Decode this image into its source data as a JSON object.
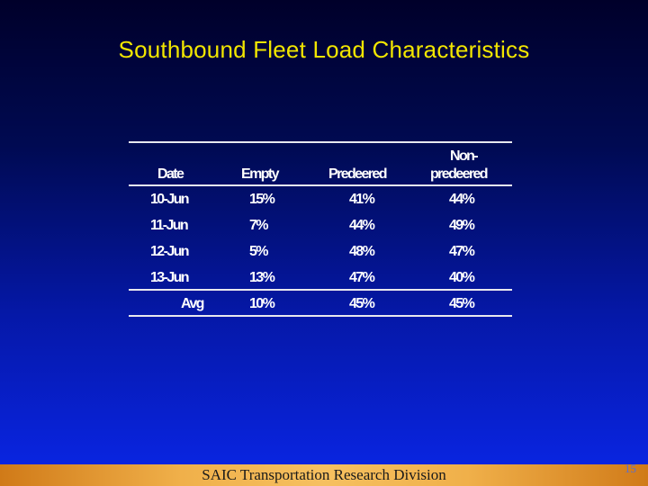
{
  "slide": {
    "title": "Southbound Fleet Load Characteristics",
    "footer": "SAIC Transportation Research Division",
    "page_number": "15"
  },
  "table": {
    "headers": {
      "date": "Date",
      "empty": "Empty",
      "predeered": "Predeered",
      "non_line1": "Non-",
      "non_line2": "predeered"
    },
    "rows": [
      {
        "date": "10-Jun",
        "empty": "15%",
        "predeered": "41%",
        "non": "44%"
      },
      {
        "date": "11-Jun",
        "empty": "7%",
        "predeered": "44%",
        "non": "49%"
      },
      {
        "date": "12-Jun",
        "empty": "5%",
        "predeered": "48%",
        "non": "47%"
      },
      {
        "date": "13-Jun",
        "empty": "13%",
        "predeered": "47%",
        "non": "40%"
      }
    ],
    "avg": {
      "label": "Avg",
      "empty": "10%",
      "predeered": "45%",
      "non": "45%"
    }
  }
}
